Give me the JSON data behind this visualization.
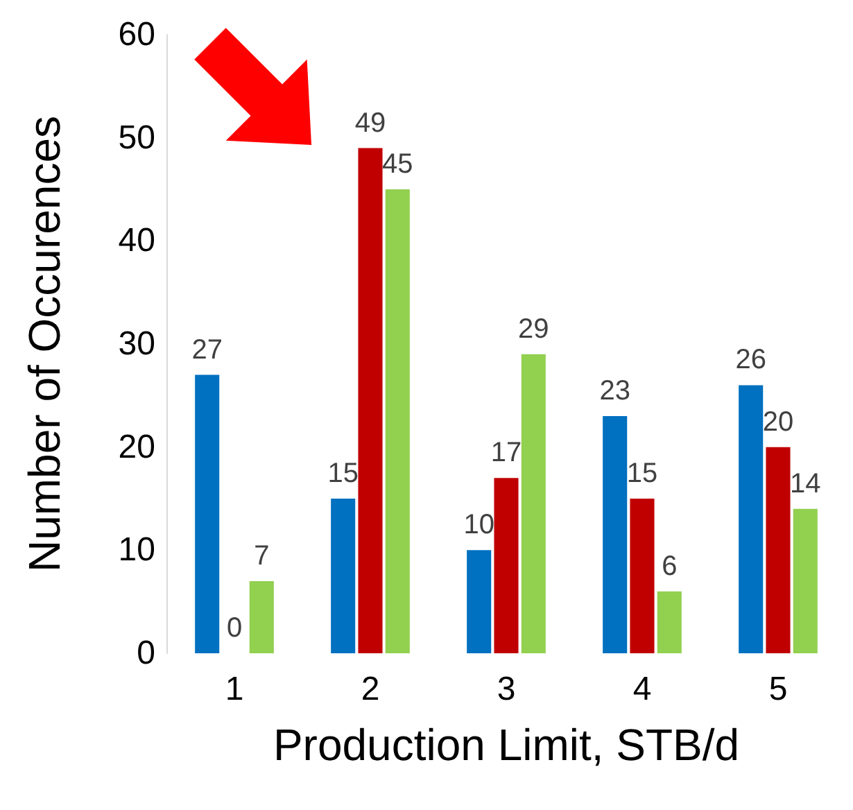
{
  "chart_data": {
    "type": "bar",
    "xlabel": "Production Limit, STB/d",
    "ylabel": "Number of Occurences",
    "categories": [
      "1",
      "2",
      "3",
      "4",
      "5"
    ],
    "series": [
      {
        "color": "#0070c0",
        "values": [
          27,
          15,
          10,
          23,
          26
        ]
      },
      {
        "color": "#c00000",
        "values": [
          0,
          49,
          17,
          15,
          20
        ]
      },
      {
        "color": "#92d050",
        "values": [
          7,
          45,
          29,
          6,
          14
        ]
      }
    ],
    "ylim": [
      0,
      60
    ],
    "yticks": [
      0,
      10,
      20,
      30,
      40,
      50,
      60
    ],
    "grid": false,
    "data_labels": true
  }
}
